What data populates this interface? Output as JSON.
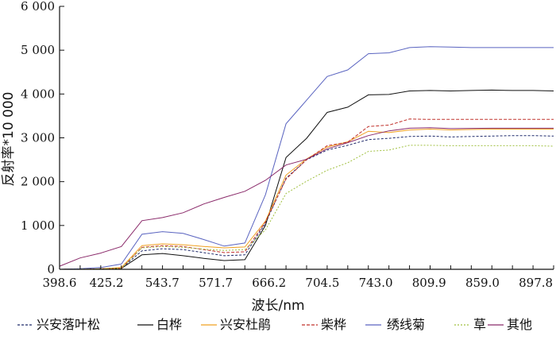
{
  "chart_data": {
    "type": "line",
    "xlabel": "波长/nm",
    "ylabel": "反射率*10 000",
    "x_tick_labels": [
      "398.6",
      "425.2",
      "543.7",
      "571.7",
      "666.2",
      "704.5",
      "743.0",
      "809.9",
      "859.0",
      "897.8"
    ],
    "y_tick_labels": [
      "0",
      "1 000",
      "2 000",
      "3 000",
      "4 000",
      "5 000",
      "6 000"
    ],
    "ylim": [
      0,
      6000
    ],
    "y_ticks": [
      0,
      1000,
      2000,
      3000,
      4000,
      5000,
      6000
    ],
    "grid": false,
    "legend_position": "bottom",
    "x_point_count": 25,
    "series": [
      {
        "name": "兴安落叶松",
        "color": "#1f2a6b",
        "dash": "3,2",
        "values": [
          0,
          5,
          10,
          20,
          420,
          470,
          450,
          380,
          310,
          330,
          1050,
          2080,
          2500,
          2720,
          2830,
          2960,
          2990,
          3030,
          3040,
          3020,
          3030,
          3040,
          3050,
          3050,
          3040
        ]
      },
      {
        "name": "白桦",
        "color": "#111111",
        "dash": "",
        "values": [
          0,
          5,
          10,
          20,
          330,
          360,
          310,
          250,
          200,
          220,
          1000,
          2550,
          2990,
          3580,
          3700,
          3980,
          3990,
          4070,
          4080,
          4070,
          4080,
          4090,
          4080,
          4080,
          4070
        ]
      },
      {
        "name": "兴安杜鹃",
        "color": "#f0a020",
        "dash": "",
        "values": [
          0,
          5,
          10,
          40,
          540,
          580,
          560,
          520,
          490,
          510,
          1100,
          2150,
          2520,
          2790,
          2910,
          3150,
          3120,
          3180,
          3200,
          3180,
          3190,
          3200,
          3200,
          3200,
          3200
        ]
      },
      {
        "name": "柴桦",
        "color": "#c0302a",
        "dash": "4,2",
        "values": [
          0,
          5,
          10,
          20,
          500,
          540,
          520,
          450,
          380,
          400,
          1080,
          2060,
          2500,
          2820,
          2900,
          3260,
          3290,
          3430,
          3420,
          3420,
          3420,
          3420,
          3420,
          3420,
          3420
        ]
      },
      {
        "name": "绣线菊",
        "color": "#5a64c0",
        "dash": "",
        "values": [
          0,
          15,
          40,
          120,
          800,
          860,
          820,
          680,
          530,
          600,
          1700,
          3320,
          3860,
          4400,
          4550,
          4920,
          4940,
          5060,
          5080,
          5070,
          5060,
          5060,
          5060,
          5060,
          5060
        ]
      },
      {
        "name": "草",
        "color": "#a0c040",
        "dash": "2,2",
        "values": [
          0,
          5,
          10,
          20,
          490,
          520,
          500,
          460,
          430,
          450,
          900,
          1730,
          2010,
          2260,
          2430,
          2690,
          2720,
          2830,
          2830,
          2820,
          2820,
          2820,
          2820,
          2820,
          2810
        ]
      },
      {
        "name": "其他",
        "color": "#8a2a6a",
        "dash": "",
        "values": [
          70,
          260,
          370,
          520,
          1110,
          1180,
          1290,
          1490,
          1640,
          1780,
          2030,
          2380,
          2510,
          2750,
          2890,
          3050,
          3160,
          3220,
          3230,
          3210,
          3215,
          3220,
          3220,
          3220,
          3220
        ]
      }
    ]
  }
}
